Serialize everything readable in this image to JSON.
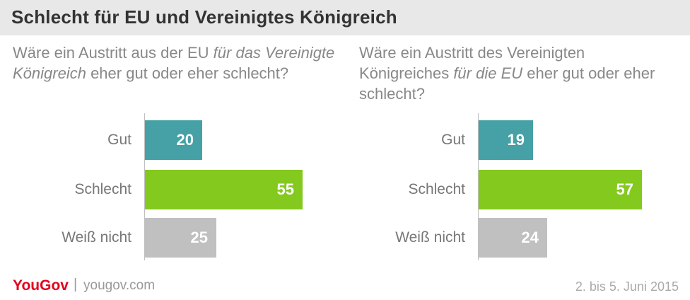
{
  "title": "Schlecht für EU und Vereinigtes Königreich",
  "question_left": {
    "part1": "Wäre ein Austritt aus der EU ",
    "italic": "für das Vereinigte Königreich",
    "part2": " eher gut oder eher schlecht?"
  },
  "question_right": {
    "part1": "Wäre ein Austritt des Vereinigten Königreiches ",
    "italic": "für die EU",
    "part2": " eher gut oder eher schlecht?"
  },
  "chart_data": [
    {
      "type": "bar",
      "orientation": "horizontal",
      "categories": [
        "Gut",
        "Schlecht",
        "Weiß nicht"
      ],
      "values": [
        20,
        55,
        25
      ],
      "colors": [
        "#45a1a5",
        "#84c91e",
        "#c0c0c0"
      ]
    },
    {
      "type": "bar",
      "orientation": "horizontal",
      "categories": [
        "Gut",
        "Schlecht",
        "Weiß nicht"
      ],
      "values": [
        19,
        57,
        24
      ],
      "colors": [
        "#45a1a5",
        "#84c91e",
        "#c0c0c0"
      ]
    }
  ],
  "footer": {
    "brand": "YouGov",
    "separator": "|",
    "url": "yougov.com",
    "date": "2. bis 5. Juni 2015"
  }
}
